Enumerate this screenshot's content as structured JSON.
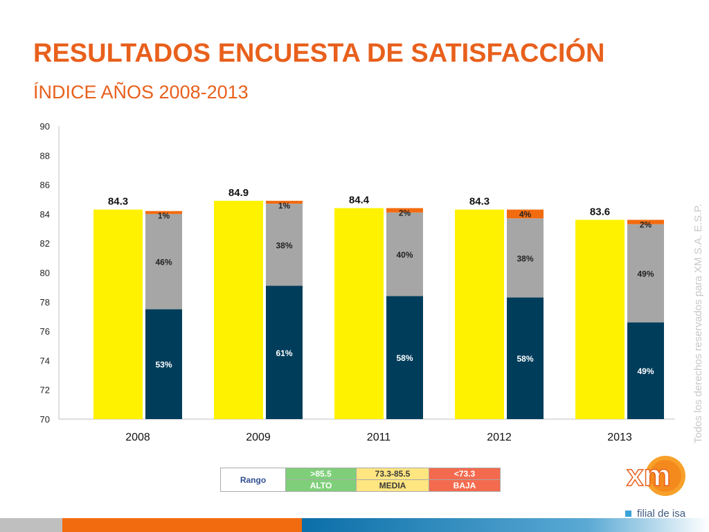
{
  "header": {
    "title": "RESULTADOS ENCUESTA DE SATISFACCIÓN",
    "subtitle": "ÍNDICE AÑOS 2008-2013"
  },
  "side_text": "Todos los derechos reservados para XM S.A. E.S.P.",
  "chart_data": {
    "type": "bar",
    "categories": [
      "2008",
      "2009",
      "2011",
      "2012",
      "2013"
    ],
    "index_values": [
      84.3,
      84.9,
      84.4,
      84.3,
      83.6
    ],
    "index_labels": [
      "84.3",
      "84.9",
      "84.4",
      "84.3",
      "83.6"
    ],
    "stack": [
      {
        "key": "alto",
        "color": "#003D5B",
        "pct_labels": [
          "53%",
          "61%",
          "58%",
          "58%",
          "49%"
        ],
        "values": [
          77.5,
          79.1,
          78.4,
          78.3,
          76.6
        ]
      },
      {
        "key": "media",
        "color": "#A6A6A6",
        "pct_labels": [
          "46%",
          "38%",
          "40%",
          "38%",
          "49%"
        ],
        "values": [
          84.0,
          84.7,
          84.1,
          83.7,
          83.3
        ]
      },
      {
        "key": "baja",
        "color": "#F26B0F",
        "pct_labels": [
          "1%",
          "1%",
          "2%",
          "4%",
          "2%"
        ],
        "values": [
          84.2,
          84.9,
          84.4,
          84.3,
          83.6
        ]
      }
    ],
    "index_color": "#FFF200",
    "y_ticks": [
      "70",
      "72",
      "74",
      "76",
      "78",
      "80",
      "82",
      "84",
      "86",
      "88",
      "90"
    ],
    "ylim": [
      70,
      90
    ],
    "grid": false
  },
  "legend": {
    "label": "Rango",
    "ranges": [
      ">85.5",
      "73.3-85.5",
      "<73.3"
    ],
    "names": [
      "ALTO",
      "MEDIA",
      "BAJA"
    ]
  },
  "logo": {
    "text": "xm",
    "filial": "filial de isa"
  }
}
